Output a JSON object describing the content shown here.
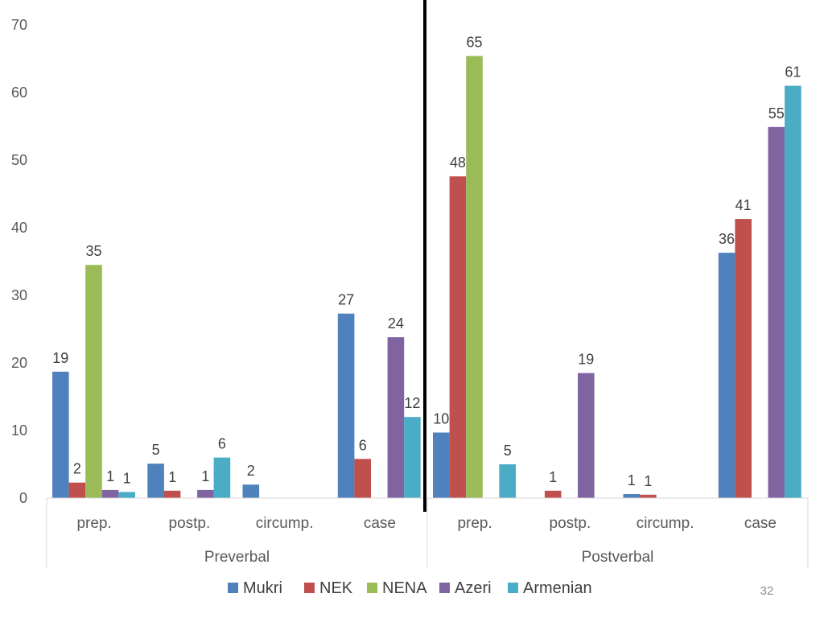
{
  "chart_data": {
    "type": "bar",
    "groups": [
      {
        "label": "Preverbal",
        "categories": [
          "prep.",
          "postp.",
          "circump.",
          "case"
        ]
      },
      {
        "label": "Postverbal",
        "categories": [
          "prep.",
          "postp.",
          "circump.",
          "case"
        ]
      }
    ],
    "series": [
      {
        "name": "Mukri",
        "color": "#4F81BD",
        "values": [
          18.7,
          5.1,
          2.0,
          27.3,
          9.7,
          null,
          0.6,
          36.3
        ],
        "labels": [
          "19",
          "5",
          "2",
          "27",
          "10",
          "",
          "1",
          "36"
        ]
      },
      {
        "name": "NEK",
        "color": "#C0504D",
        "values": [
          2.3,
          1.1,
          null,
          5.8,
          47.6,
          1.1,
          0.5,
          41.3
        ],
        "labels": [
          "2",
          "1",
          "",
          "6",
          "48",
          "1",
          "1",
          "41"
        ]
      },
      {
        "name": "NENA",
        "color": "#9BBB59",
        "values": [
          34.5,
          null,
          null,
          null,
          65.4,
          null,
          null,
          null
        ],
        "labels": [
          "35",
          "",
          "",
          "",
          "65",
          "",
          "",
          ""
        ]
      },
      {
        "name": "Azeri",
        "color": "#8064A2",
        "values": [
          1.2,
          1.2,
          null,
          23.8,
          null,
          18.5,
          null,
          54.9
        ],
        "labels": [
          "1",
          "1",
          "",
          "24",
          "",
          "19",
          "",
          "55"
        ]
      },
      {
        "name": "Armenian",
        "color": "#4BACC6",
        "values": [
          0.9,
          6.0,
          null,
          12.0,
          5.0,
          null,
          null,
          61.0
        ],
        "labels": [
          "1",
          "6",
          "",
          "12",
          "5",
          "",
          "",
          "61"
        ]
      }
    ],
    "ylim": [
      0,
      70
    ],
    "yticks": [
      "0",
      "10",
      "20",
      "30",
      "40",
      "50",
      "60",
      "70"
    ],
    "legend_position": "bottom",
    "grid": false
  },
  "page_number": "32"
}
